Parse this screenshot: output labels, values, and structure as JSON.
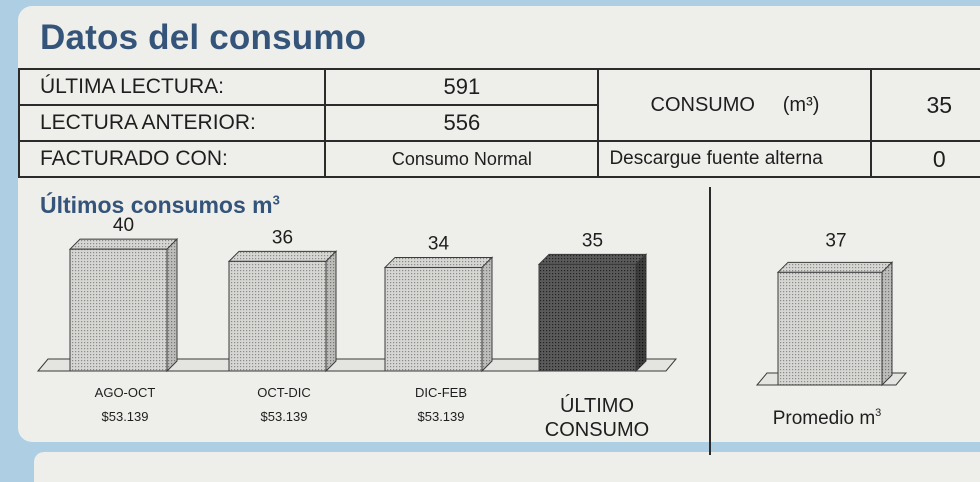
{
  "section": {
    "title": "Datos del consumo"
  },
  "readings": {
    "ultima_lectura_label": "ÚLTIMA LECTURA:",
    "ultima_lectura_value": "591",
    "lectura_anterior_label": "LECTURA ANTERIOR:",
    "lectura_anterior_value": "556",
    "facturado_label": "FACTURADO CON:",
    "facturado_value": "Consumo Normal",
    "consumo_label": "CONSUMO",
    "consumo_unit": "(m³)",
    "consumo_value": "35",
    "descargue_label": "Descargue fuente alterna",
    "descargue_value": "0"
  },
  "chart_heading": {
    "text": "Últimos consumos m",
    "sup": "3"
  },
  "chart_data": [
    {
      "type": "bar",
      "categories": [
        "AGO-OCT",
        "OCT-DIC",
        "DIC-FEB",
        "ÚLTIMO CONSUMO"
      ],
      "values": [
        40,
        36,
        34,
        35
      ],
      "value_labels": [
        "40",
        "36",
        "34",
        "35"
      ],
      "category_labels": [
        [
          "AGO-OCT"
        ],
        [
          "OCT-DIC"
        ],
        [
          "DIC-FEB"
        ],
        [
          "ÚLTIMO",
          "CONSUMO"
        ]
      ],
      "costs": [
        "$53.139",
        "$53.139",
        "$53.139",
        ""
      ],
      "highlight_index": 3,
      "ylim": [
        0,
        44
      ],
      "title": "Últimos consumos m³",
      "colors": {
        "bar": "#c9c9c7",
        "highlight": "#4a4a4a",
        "edge": "#3a3a3a"
      }
    },
    {
      "type": "bar",
      "categories": [
        "Promedio m³"
      ],
      "values": [
        37
      ],
      "value_labels": [
        "37"
      ],
      "category_text": "Promedio m",
      "category_sup": "3",
      "ylim": [
        0,
        44
      ]
    }
  ]
}
